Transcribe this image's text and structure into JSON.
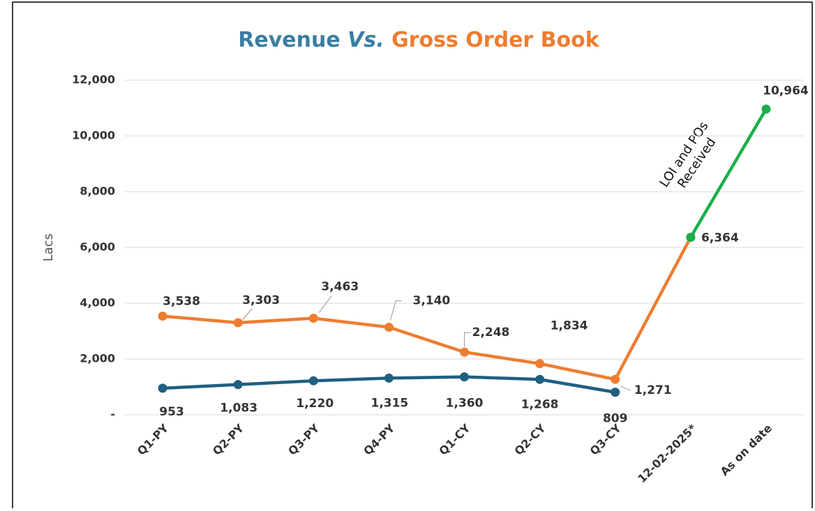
{
  "chart_data": {
    "type": "line",
    "title_parts": [
      "Revenue",
      "Vs.",
      "Gross Order Book"
    ],
    "y_label": "Lacs",
    "categories": [
      "Q1-PY",
      "Q2-PY",
      "Q3-PY",
      "Q4-PY",
      "Q1-CY",
      "Q2-CY",
      "Q3-CY",
      "12-02-2025*",
      "As on date"
    ],
    "series": [
      {
        "color": "#ed7d31",
        "values": [
          3538,
          3303,
          3463,
          3140,
          2248,
          1834,
          1271,
          6364,
          null
        ],
        "value_labels": [
          "3,538",
          "3,303",
          "3,463",
          "3,140",
          "2,248",
          "1,834",
          "1,271",
          "6,364",
          null
        ]
      },
      {
        "color": "#1f5f80",
        "values": [
          953,
          1083,
          1220,
          1315,
          1360,
          1268,
          809,
          null,
          null
        ],
        "value_labels": [
          "953",
          "1,083",
          "1,220",
          "1,315",
          "1,360",
          "1,268",
          "809",
          null,
          null
        ]
      },
      {
        "color": "#1aaf4b",
        "values": [
          null,
          null,
          null,
          null,
          null,
          null,
          null,
          6364,
          10964
        ],
        "value_labels": [
          null,
          null,
          null,
          null,
          null,
          null,
          null,
          null,
          "10,964"
        ]
      }
    ],
    "annotation": [
      "LOI and POs",
      "Received"
    ],
    "ylim": [
      0,
      12000
    ],
    "yticks": [
      {
        "value": 0,
        "label": "-"
      },
      {
        "value": 2000,
        "label": "2,000"
      },
      {
        "value": 4000,
        "label": "4,000"
      },
      {
        "value": 6000,
        "label": "6,000"
      },
      {
        "value": 8000,
        "label": "8,000"
      },
      {
        "value": 10000,
        "label": "10,000"
      },
      {
        "value": 12000,
        "label": "12,000"
      }
    ],
    "grid": true
  }
}
